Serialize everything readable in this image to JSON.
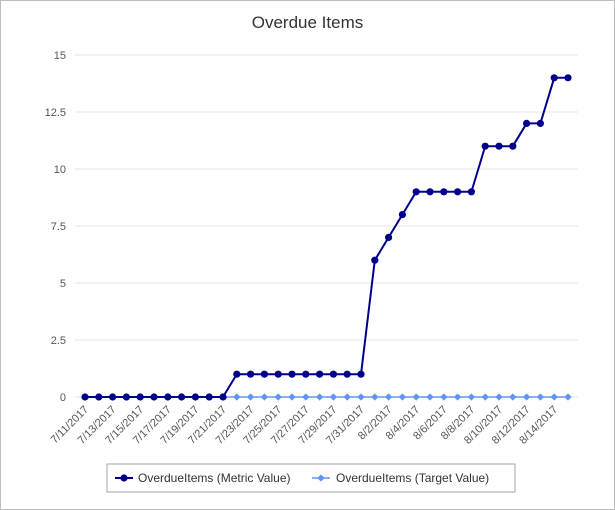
{
  "chart_data": {
    "type": "line",
    "title": "Overdue Items",
    "xlabel": "",
    "ylabel": "",
    "ylim": [
      0,
      15
    ],
    "yticks": [
      "0",
      "2.5",
      "5",
      "7.5",
      "10",
      "12.5",
      "15"
    ],
    "x": [
      "7/11/2017",
      "7/12/2017",
      "7/13/2017",
      "7/14/2017",
      "7/15/2017",
      "7/16/2017",
      "7/17/2017",
      "7/18/2017",
      "7/19/2017",
      "7/20/2017",
      "7/21/2017",
      "7/22/2017",
      "7/23/2017",
      "7/24/2017",
      "7/25/2017",
      "7/26/2017",
      "7/27/2017",
      "7/28/2017",
      "7/29/2017",
      "7/30/2017",
      "7/31/2017",
      "8/1/2017",
      "8/2/2017",
      "8/3/2017",
      "8/4/2017",
      "8/5/2017",
      "8/6/2017",
      "8/7/2017",
      "8/8/2017",
      "8/9/2017",
      "8/10/2017",
      "8/11/2017",
      "8/12/2017",
      "8/13/2017",
      "8/14/2017",
      "8/15/2017"
    ],
    "xtick_labels": [
      "7/11/2017",
      "7/13/2017",
      "7/15/2017",
      "7/17/2017",
      "7/19/2017",
      "7/21/2017",
      "7/23/2017",
      "7/25/2017",
      "7/27/2017",
      "7/29/2017",
      "7/31/2017",
      "8/2/2017",
      "8/4/2017",
      "8/6/2017",
      "8/8/2017",
      "8/10/2017",
      "8/12/2017",
      "8/14/2017"
    ],
    "series": [
      {
        "name": "OverdueItems (Metric Value)",
        "color": "#00008b",
        "values": [
          0,
          0,
          0,
          0,
          0,
          0,
          0,
          0,
          0,
          0,
          0,
          1,
          1,
          1,
          1,
          1,
          1,
          1,
          1,
          1,
          1,
          6,
          7,
          8,
          9,
          9,
          9,
          9,
          9,
          11,
          11,
          11,
          12,
          12,
          14,
          14
        ]
      },
      {
        "name": "OverdueItems (Target Value)",
        "color": "#6495ed",
        "values": [
          0,
          0,
          0,
          0,
          0,
          0,
          0,
          0,
          0,
          0,
          0,
          0,
          0,
          0,
          0,
          0,
          0,
          0,
          0,
          0,
          0,
          0,
          0,
          0,
          0,
          0,
          0,
          0,
          0,
          0,
          0,
          0,
          0,
          0,
          0,
          0
        ]
      }
    ],
    "grid": true,
    "legend_position": "bottom"
  }
}
